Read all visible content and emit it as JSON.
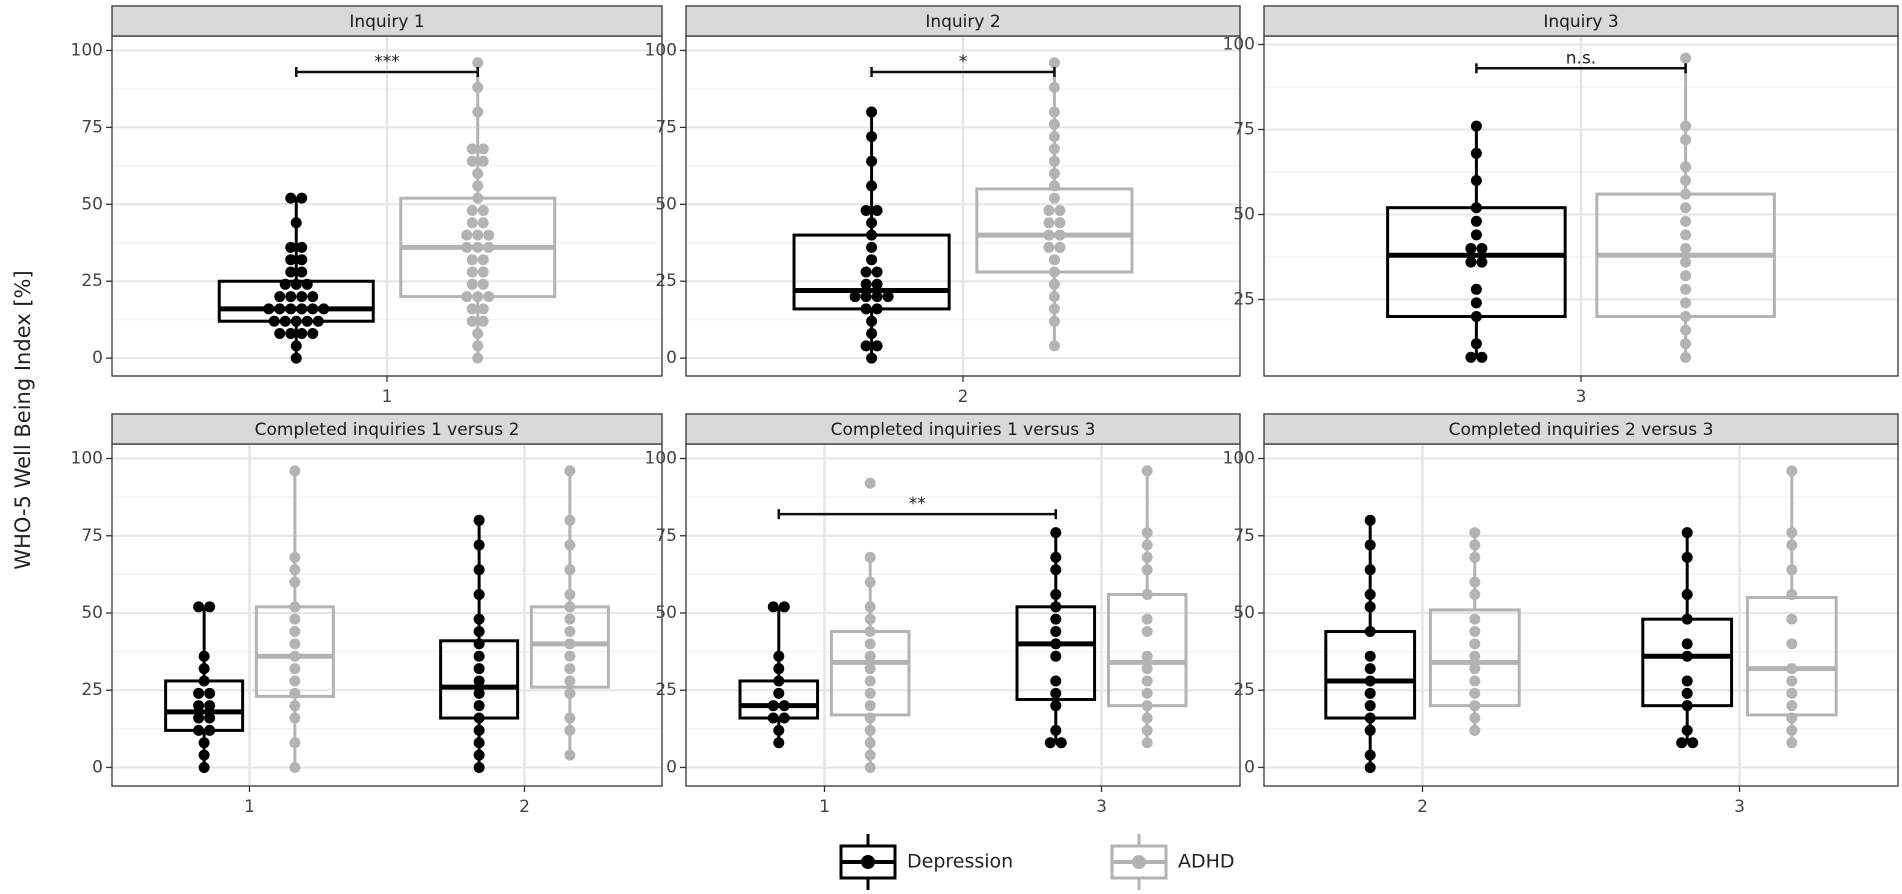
{
  "y_label": "WHO-5 Well Being Index [%]",
  "legend": [
    {
      "name": "Depression",
      "color": "#000000"
    },
    {
      "name": "ADHD",
      "color": "#b3b3b3"
    }
  ],
  "chart_data": [
    {
      "type": "box",
      "title": "Inquiry 1",
      "categories": [
        "1"
      ],
      "ylim": [
        -5.8,
        104.7
      ],
      "yticks": [
        0,
        25,
        50,
        75,
        100
      ],
      "series": [
        {
          "stats": [
            [
              0,
              12,
              16,
              25,
              52
            ]
          ],
          "points": [
            [
              0,
              4,
              8,
              8,
              8,
              8,
              12,
              12,
              12,
              12,
              12,
              16,
              16,
              16,
              16,
              16,
              16,
              20,
              20,
              20,
              20,
              24,
              24,
              24,
              28,
              28,
              32,
              32,
              36,
              36,
              44,
              52,
              52
            ]
          ]
        },
        {
          "stats": [
            [
              0,
              20,
              36,
              52,
              96
            ]
          ],
          "points": [
            [
              0,
              4,
              8,
              12,
              12,
              16,
              16,
              20,
              20,
              20,
              24,
              24,
              28,
              28,
              32,
              32,
              36,
              36,
              36,
              40,
              40,
              40,
              44,
              44,
              48,
              48,
              52,
              56,
              60,
              64,
              64,
              68,
              68,
              80,
              88,
              96
            ]
          ]
        }
      ],
      "annotations": [
        {
          "label": "***",
          "from": [
            0,
            0
          ],
          "to": [
            0,
            1
          ],
          "y": 93
        }
      ]
    },
    {
      "type": "box",
      "title": "Inquiry 2",
      "categories": [
        "2"
      ],
      "ylim": [
        -5.8,
        104.7
      ],
      "yticks": [
        0,
        25,
        50,
        75,
        100
      ],
      "series": [
        {
          "stats": [
            [
              0,
              16,
              22,
              40,
              80
            ]
          ],
          "points": [
            [
              0,
              4,
              4,
              8,
              12,
              16,
              16,
              20,
              20,
              20,
              20,
              24,
              24,
              28,
              28,
              32,
              36,
              40,
              44,
              48,
              48,
              56,
              64,
              72,
              80
            ]
          ]
        },
        {
          "stats": [
            [
              4,
              28,
              40,
              55,
              96
            ]
          ],
          "points": [
            [
              4,
              12,
              16,
              20,
              24,
              28,
              32,
              36,
              36,
              40,
              40,
              44,
              44,
              48,
              48,
              52,
              56,
              60,
              64,
              68,
              72,
              76,
              80,
              88,
              96
            ]
          ]
        }
      ],
      "annotations": [
        {
          "label": "*",
          "from": [
            0,
            0
          ],
          "to": [
            0,
            1
          ],
          "y": 93
        }
      ]
    },
    {
      "type": "box",
      "title": "Inquiry 3",
      "categories": [
        "3"
      ],
      "ylim": [
        2.5,
        102.5
      ],
      "yticks": [
        25,
        50,
        75,
        100
      ],
      "series": [
        {
          "stats": [
            [
              8,
              20,
              38,
              52,
              76
            ]
          ],
          "points": [
            [
              8,
              8,
              12,
              20,
              24,
              28,
              36,
              36,
              40,
              40,
              44,
              48,
              52,
              60,
              68,
              76
            ]
          ]
        },
        {
          "stats": [
            [
              8,
              20,
              38,
              56,
              96
            ]
          ],
          "points": [
            [
              8,
              12,
              16,
              20,
              24,
              28,
              32,
              36,
              40,
              44,
              48,
              52,
              56,
              60,
              64,
              72,
              76,
              96
            ]
          ]
        }
      ],
      "annotations": [
        {
          "label": "n.s.",
          "from": [
            0,
            0
          ],
          "to": [
            0,
            1
          ],
          "y": 93
        }
      ]
    },
    {
      "type": "box",
      "title": "Completed inquiries 1 versus 2",
      "categories": [
        "1",
        "2"
      ],
      "ylim": [
        -6,
        104.7
      ],
      "yticks": [
        0,
        25,
        50,
        75,
        100
      ],
      "series": [
        {
          "stats": [
            [
              0,
              12,
              18,
              28,
              52
            ],
            [
              0,
              16,
              26,
              41,
              80
            ]
          ],
          "points": [
            [
              0,
              4,
              8,
              12,
              12,
              16,
              16,
              20,
              20,
              24,
              24,
              28,
              32,
              36,
              52,
              52
            ],
            [
              0,
              4,
              8,
              12,
              16,
              20,
              24,
              28,
              32,
              36,
              40,
              44,
              48,
              56,
              64,
              72,
              80
            ]
          ]
        },
        {
          "stats": [
            [
              0,
              23,
              36,
              52,
              96
            ],
            [
              4,
              26,
              40,
              52,
              96
            ]
          ],
          "points": [
            [
              0,
              8,
              16,
              20,
              24,
              28,
              32,
              36,
              40,
              44,
              48,
              52,
              60,
              64,
              68,
              96
            ],
            [
              4,
              12,
              16,
              24,
              28,
              32,
              36,
              40,
              44,
              48,
              52,
              56,
              64,
              72,
              80,
              96
            ]
          ]
        }
      ],
      "annotations": []
    },
    {
      "type": "box",
      "title": "Completed inquiries 1 versus 3",
      "categories": [
        "1",
        "3"
      ],
      "ylim": [
        -6,
        104.7
      ],
      "yticks": [
        0,
        25,
        50,
        75,
        100
      ],
      "series": [
        {
          "stats": [
            [
              8,
              16,
              20,
              28,
              52
            ],
            [
              8,
              22,
              40,
              52,
              76
            ]
          ],
          "points": [
            [
              8,
              12,
              16,
              16,
              20,
              20,
              24,
              28,
              32,
              36,
              52,
              52
            ],
            [
              8,
              8,
              12,
              20,
              24,
              28,
              36,
              40,
              44,
              48,
              52,
              56,
              64,
              68,
              76
            ]
          ]
        },
        {
          "stats": [
            [
              0,
              17,
              34,
              44,
              68
            ],
            [
              8,
              20,
              34,
              56,
              96
            ]
          ],
          "points": [
            [
              0,
              4,
              8,
              12,
              16,
              20,
              24,
              28,
              32,
              36,
              40,
              44,
              48,
              52,
              60,
              68,
              92
            ],
            [
              8,
              12,
              16,
              20,
              24,
              28,
              32,
              36,
              44,
              48,
              56,
              64,
              68,
              72,
              76,
              96
            ]
          ]
        }
      ],
      "annotations": [
        {
          "label": "**",
          "from": [
            0,
            0
          ],
          "to": [
            1,
            0
          ],
          "y": 82
        }
      ]
    },
    {
      "type": "box",
      "title": "Completed inquiries 2 versus 3",
      "categories": [
        "2",
        "3"
      ],
      "ylim": [
        -6,
        104.7
      ],
      "yticks": [
        0,
        25,
        50,
        75,
        100
      ],
      "series": [
        {
          "stats": [
            [
              0,
              16,
              28,
              44,
              80
            ],
            [
              8,
              20,
              36,
              48,
              76
            ]
          ],
          "points": [
            [
              0,
              4,
              12,
              16,
              20,
              24,
              28,
              32,
              36,
              44,
              52,
              56,
              64,
              72,
              80
            ],
            [
              8,
              8,
              12,
              20,
              24,
              28,
              36,
              40,
              48,
              56,
              68,
              76
            ]
          ]
        },
        {
          "stats": [
            [
              12,
              20,
              34,
              51,
              76
            ],
            [
              8,
              17,
              32,
              55,
              96
            ]
          ],
          "points": [
            [
              12,
              16,
              20,
              24,
              28,
              32,
              36,
              40,
              44,
              48,
              56,
              60,
              68,
              72,
              76
            ],
            [
              8,
              12,
              16,
              20,
              24,
              28,
              32,
              40,
              48,
              56,
              64,
              72,
              76,
              96
            ]
          ]
        }
      ],
      "annotations": []
    }
  ]
}
